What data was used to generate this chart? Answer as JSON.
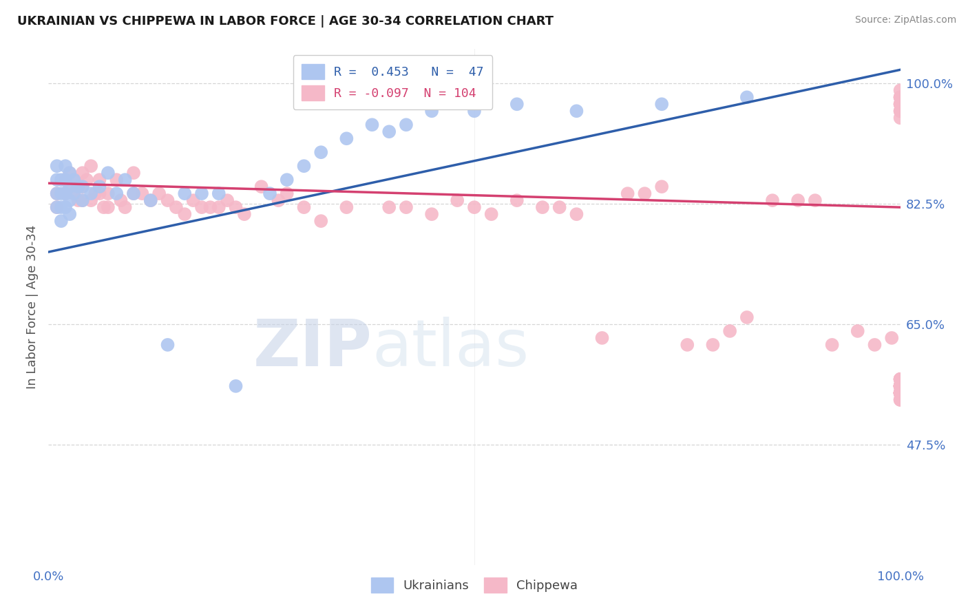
{
  "title": "UKRAINIAN VS CHIPPEWA IN LABOR FORCE | AGE 30-34 CORRELATION CHART",
  "source": "Source: ZipAtlas.com",
  "ylabel": "In Labor Force | Age 30-34",
  "xlim": [
    0.0,
    1.0
  ],
  "ylim": [
    0.3,
    1.05
  ],
  "yticks": [
    0.475,
    0.65,
    0.825,
    1.0
  ],
  "ytick_labels": [
    "47.5%",
    "65.0%",
    "82.5%",
    "100.0%"
  ],
  "xtick_labels": [
    "0.0%",
    "100.0%"
  ],
  "xticks": [
    0.0,
    1.0
  ],
  "ukrainian_R": 0.453,
  "ukrainian_N": 47,
  "chippewa_R": -0.097,
  "chippewa_N": 104,
  "ukrainian_color": "#aec6f0",
  "chippewa_color": "#f5b8c8",
  "ukrainian_line_color": "#2e5eaa",
  "chippewa_line_color": "#d44070",
  "background_color": "#ffffff",
  "tick_color": "#4472c4",
  "label_color": "#555555",
  "grid_color": "#cccccc",
  "watermark_color": "#dde5f0",
  "legend_text_ukr": "R =  0.453   N =  47",
  "legend_text_chip": "R = -0.097  N = 104",
  "bottom_legend_ukr": "Ukrainians",
  "bottom_legend_chip": "Chippewa",
  "ukr_line_x0": 0.0,
  "ukr_line_y0": 0.755,
  "ukr_line_x1": 1.0,
  "ukr_line_y1": 1.02,
  "chip_line_x0": 0.0,
  "chip_line_y0": 0.855,
  "chip_line_x1": 1.0,
  "chip_line_y1": 0.82,
  "ukr_pts_x": [
    0.01,
    0.01,
    0.01,
    0.01,
    0.015,
    0.015,
    0.015,
    0.015,
    0.02,
    0.02,
    0.02,
    0.02,
    0.025,
    0.025,
    0.025,
    0.025,
    0.03,
    0.03,
    0.035,
    0.04,
    0.04,
    0.05,
    0.06,
    0.07,
    0.08,
    0.09,
    0.1,
    0.12,
    0.14,
    0.16,
    0.18,
    0.2,
    0.22,
    0.26,
    0.28,
    0.3,
    0.32,
    0.35,
    0.38,
    0.4,
    0.42,
    0.45,
    0.5,
    0.55,
    0.62,
    0.72,
    0.82
  ],
  "ukr_pts_y": [
    0.86,
    0.88,
    0.84,
    0.82,
    0.86,
    0.84,
    0.82,
    0.8,
    0.88,
    0.86,
    0.84,
    0.82,
    0.87,
    0.85,
    0.83,
    0.81,
    0.86,
    0.84,
    0.85,
    0.85,
    0.83,
    0.84,
    0.85,
    0.87,
    0.84,
    0.86,
    0.84,
    0.83,
    0.62,
    0.84,
    0.84,
    0.84,
    0.56,
    0.84,
    0.86,
    0.88,
    0.9,
    0.92,
    0.94,
    0.93,
    0.94,
    0.96,
    0.96,
    0.97,
    0.96,
    0.97,
    0.98
  ],
  "chip_pts_x": [
    0.01,
    0.01,
    0.02,
    0.02,
    0.025,
    0.025,
    0.03,
    0.03,
    0.035,
    0.035,
    0.04,
    0.04,
    0.04,
    0.045,
    0.05,
    0.05,
    0.055,
    0.06,
    0.06,
    0.065,
    0.07,
    0.07,
    0.08,
    0.085,
    0.09,
    0.1,
    0.1,
    0.11,
    0.12,
    0.13,
    0.14,
    0.15,
    0.16,
    0.17,
    0.18,
    0.19,
    0.2,
    0.21,
    0.22,
    0.23,
    0.25,
    0.27,
    0.28,
    0.3,
    0.32,
    0.35,
    0.4,
    0.42,
    0.45,
    0.48,
    0.5,
    0.52,
    0.55,
    0.58,
    0.6,
    0.62,
    0.65,
    0.68,
    0.7,
    0.72,
    0.75,
    0.78,
    0.8,
    0.82,
    0.85,
    0.88,
    0.9,
    0.92,
    0.95,
    0.97,
    0.99,
    1.0,
    1.0,
    1.0,
    1.0,
    1.0,
    1.0,
    1.0,
    1.0,
    1.0,
    1.0,
    1.0,
    1.0,
    1.0,
    1.0,
    1.0,
    1.0,
    1.0,
    1.0,
    1.0,
    1.0,
    1.0,
    1.0,
    1.0,
    1.0,
    1.0,
    1.0,
    1.0,
    1.0,
    1.0,
    1.0,
    1.0,
    1.0,
    1.0
  ],
  "chip_pts_y": [
    0.84,
    0.82,
    0.86,
    0.84,
    0.87,
    0.85,
    0.86,
    0.84,
    0.85,
    0.83,
    0.87,
    0.85,
    0.83,
    0.86,
    0.88,
    0.83,
    0.84,
    0.86,
    0.84,
    0.82,
    0.84,
    0.82,
    0.86,
    0.83,
    0.82,
    0.87,
    0.84,
    0.84,
    0.83,
    0.84,
    0.83,
    0.82,
    0.81,
    0.83,
    0.82,
    0.82,
    0.82,
    0.83,
    0.82,
    0.81,
    0.85,
    0.83,
    0.84,
    0.82,
    0.8,
    0.82,
    0.82,
    0.82,
    0.81,
    0.83,
    0.82,
    0.81,
    0.83,
    0.82,
    0.82,
    0.81,
    0.63,
    0.84,
    0.84,
    0.85,
    0.62,
    0.62,
    0.64,
    0.66,
    0.83,
    0.83,
    0.83,
    0.62,
    0.64,
    0.62,
    0.63,
    0.98,
    0.97,
    0.96,
    0.98,
    0.97,
    0.98,
    0.99,
    0.97,
    0.96,
    0.95,
    0.55,
    0.56,
    0.55,
    0.56,
    0.57,
    0.55,
    0.54,
    0.55,
    0.57,
    0.56,
    0.55,
    0.56,
    0.55,
    0.54,
    0.56,
    0.55,
    0.57,
    0.56,
    0.55,
    0.56,
    0.55,
    0.57,
    0.56
  ]
}
